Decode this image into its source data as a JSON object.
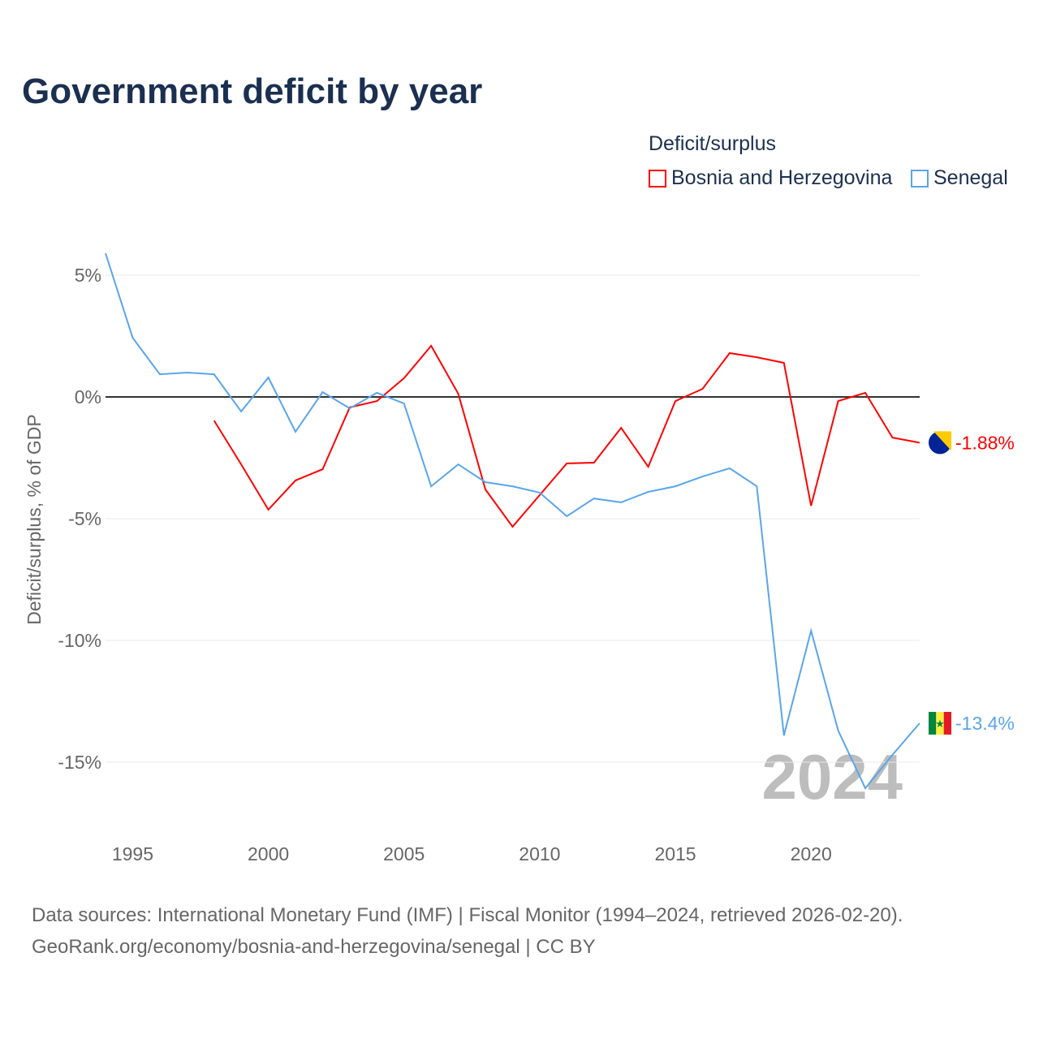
{
  "title": "Government deficit by year",
  "legend": {
    "title": "Deficit/surplus",
    "items": [
      {
        "name": "Bosnia and Herzegovina",
        "color": "#ff0000"
      },
      {
        "name": "Senegal",
        "color": "#5aa5ec"
      }
    ]
  },
  "source_line1": "Data sources: International Monetary Fund (IMF) | Fiscal Monitor (1994–2024, retrieved 2026-02-20).",
  "source_line2": "GeoRank.org/economy/bosnia-and-herzegovina/senegal | CC BY",
  "chart_data": {
    "type": "line",
    "title": "Government deficit by year",
    "xlabel": "",
    "ylabel": "Deficit/surplus, % of GDP",
    "xlim": [
      1994,
      2024
    ],
    "ylim": [
      -17,
      6
    ],
    "x_ticks": [
      1995,
      2000,
      2005,
      2010,
      2015,
      2020
    ],
    "y_ticks": [
      {
        "v": 5,
        "label": "5%"
      },
      {
        "v": 0,
        "label": "0%"
      },
      {
        "v": -5,
        "label": "-5%"
      },
      {
        "v": -10,
        "label": "-10%"
      },
      {
        "v": -15,
        "label": "-15%"
      }
    ],
    "year_watermark": "2024",
    "series": [
      {
        "name": "Bosnia and Herzegovina",
        "color": "#ff0000",
        "end_label": "-1.88%",
        "x": [
          1998,
          1999,
          2000,
          2001,
          2002,
          2003,
          2004,
          2005,
          2006,
          2007,
          2008,
          2009,
          2010,
          2011,
          2012,
          2013,
          2014,
          2015,
          2016,
          2017,
          2018,
          2019,
          2020,
          2021,
          2022,
          2023,
          2024
        ],
        "values": [
          -0.97,
          -2.77,
          -4.63,
          -3.43,
          -2.97,
          -0.43,
          -0.17,
          0.77,
          2.1,
          0.13,
          -3.8,
          -5.33,
          -4.03,
          -2.73,
          -2.7,
          -1.27,
          -2.87,
          -0.17,
          0.33,
          1.8,
          1.63,
          1.4,
          -4.47,
          -0.17,
          0.17,
          -1.67,
          -1.88
        ]
      },
      {
        "name": "Senegal",
        "color": "#5aa5ec",
        "end_label": "-13.4%",
        "x": [
          1994,
          1995,
          1996,
          1997,
          1998,
          1999,
          2000,
          2001,
          2002,
          2003,
          2004,
          2005,
          2006,
          2007,
          2008,
          2009,
          2010,
          2011,
          2012,
          2013,
          2014,
          2015,
          2016,
          2017,
          2018,
          2019,
          2020,
          2021,
          2022,
          2023,
          2024
        ],
        "values": [
          5.9,
          2.43,
          0.93,
          1.0,
          0.93,
          -0.6,
          0.8,
          -1.43,
          0.2,
          -0.47,
          0.17,
          -0.27,
          -3.67,
          -2.77,
          -3.5,
          -3.67,
          -3.93,
          -4.9,
          -4.17,
          -4.33,
          -3.9,
          -3.67,
          -3.27,
          -2.93,
          -3.67,
          -13.9,
          -9.6,
          -13.7,
          -16.07,
          -14.7,
          -13.4
        ]
      }
    ]
  }
}
